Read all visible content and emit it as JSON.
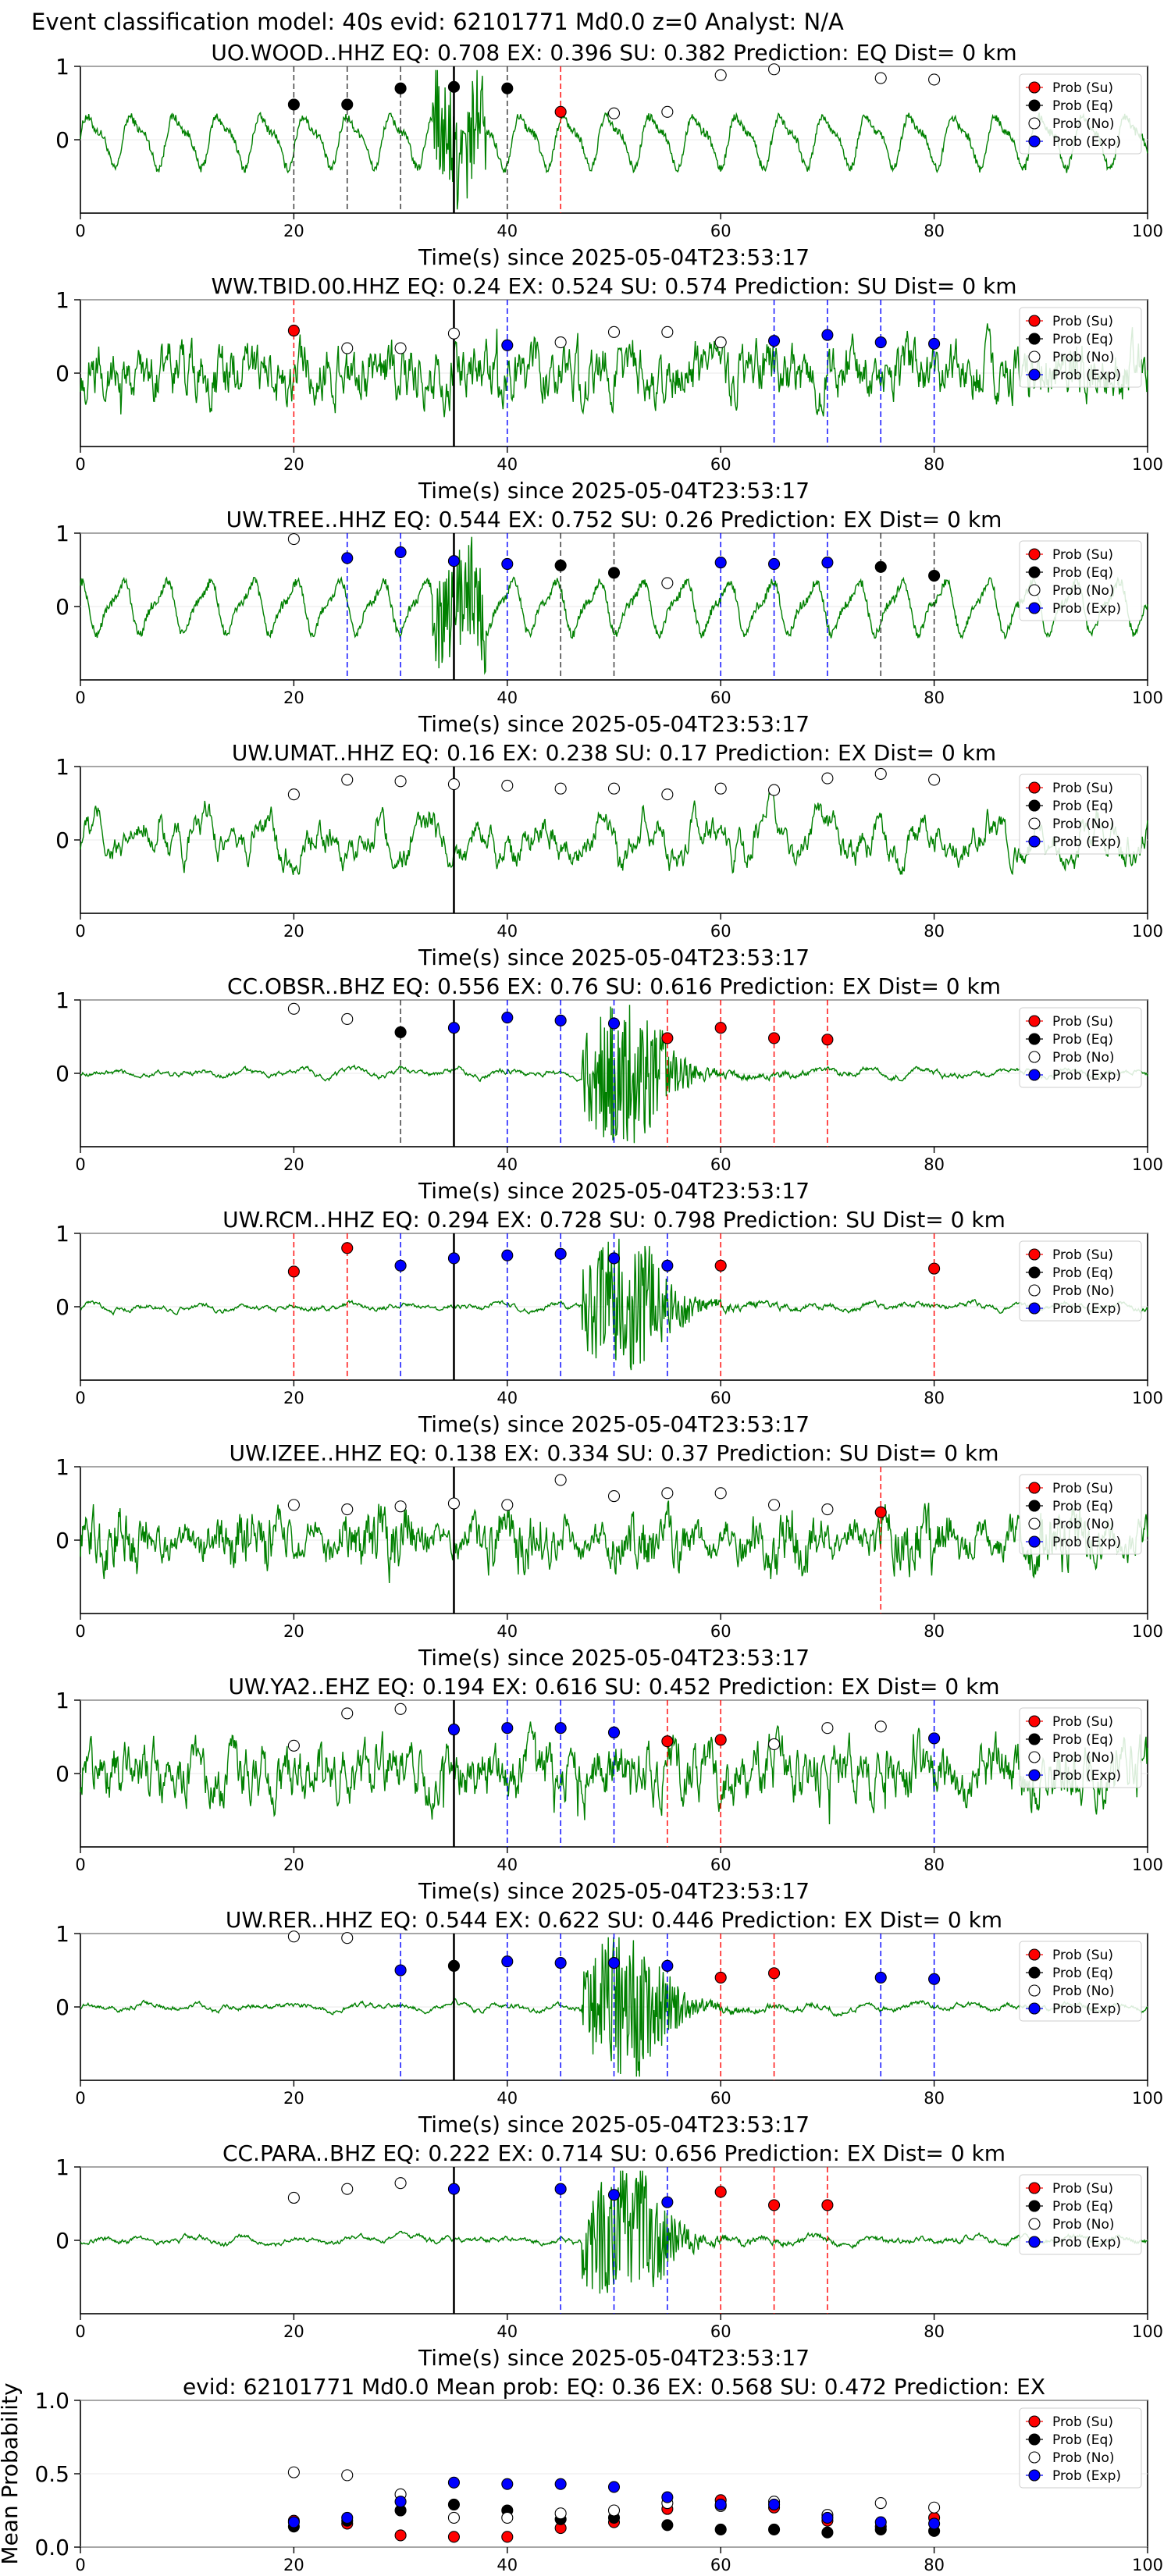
{
  "figure_title": "Event classification model: 40s evid: 62101771 Md0.0 z=0 Analyst: N/A",
  "legend_labels": [
    "Prob (Su)",
    "Prob (Eq)",
    "Prob (No)",
    "Prob (Exp)"
  ],
  "colors": {
    "su": "#ff0000",
    "eq": "#000000",
    "no": "#ffffff",
    "exp": "#0000ff",
    "waveform": "#008000",
    "axis": "#000000"
  },
  "chart_data": [
    {
      "type": "line",
      "station": "UO.WOOD..HHZ",
      "title": "UO.WOOD..HHZ   EQ: 0.708  EX: 0.396  SU: 0.382   Prediction: EQ    Dist= 0 km",
      "xlabel": "Time(s) since 2025-05-04T23:53:17",
      "ylabel": "",
      "xlim": [
        0,
        100
      ],
      "ylim": [
        -1,
        1
      ],
      "xticks": [
        0,
        20,
        40,
        60,
        80,
        100
      ],
      "yticks": [
        0,
        1
      ],
      "origin_line": 35,
      "waveform": "low-frequency",
      "points": [
        {
          "x": 20,
          "y": 0.48,
          "cls": "eq"
        },
        {
          "x": 25,
          "y": 0.48,
          "cls": "eq"
        },
        {
          "x": 30,
          "y": 0.7,
          "cls": "eq"
        },
        {
          "x": 35,
          "y": 0.72,
          "cls": "eq"
        },
        {
          "x": 40,
          "y": 0.7,
          "cls": "eq"
        },
        {
          "x": 45,
          "y": 0.38,
          "cls": "su"
        },
        {
          "x": 50,
          "y": 0.36,
          "cls": "no"
        },
        {
          "x": 55,
          "y": 0.38,
          "cls": "no"
        },
        {
          "x": 60,
          "y": 0.88,
          "cls": "no"
        },
        {
          "x": 65,
          "y": 0.96,
          "cls": "no"
        },
        {
          "x": 75,
          "y": 0.84,
          "cls": "no"
        },
        {
          "x": 80,
          "y": 0.82,
          "cls": "no"
        }
      ]
    },
    {
      "type": "line",
      "station": "WW.TBID.00.HHZ",
      "title": "WW.TBID.00.HHZ   EQ: 0.24  EX: 0.524  SU: 0.574   Prediction: SU    Dist= 0 km",
      "xlabel": "Time(s) since 2025-05-04T23:53:17",
      "ylabel": "",
      "xlim": [
        0,
        100
      ],
      "ylim": [
        -1,
        1
      ],
      "xticks": [
        0,
        20,
        40,
        60,
        80,
        100
      ],
      "yticks": [
        0,
        1
      ],
      "origin_line": 35,
      "waveform": "noisy",
      "points": [
        {
          "x": 20,
          "y": 0.58,
          "cls": "su"
        },
        {
          "x": 25,
          "y": 0.34,
          "cls": "no"
        },
        {
          "x": 30,
          "y": 0.34,
          "cls": "no"
        },
        {
          "x": 35,
          "y": 0.54,
          "cls": "no"
        },
        {
          "x": 40,
          "y": 0.38,
          "cls": "exp"
        },
        {
          "x": 45,
          "y": 0.42,
          "cls": "no"
        },
        {
          "x": 50,
          "y": 0.56,
          "cls": "no"
        },
        {
          "x": 55,
          "y": 0.56,
          "cls": "no"
        },
        {
          "x": 60,
          "y": 0.42,
          "cls": "no"
        },
        {
          "x": 65,
          "y": 0.44,
          "cls": "exp"
        },
        {
          "x": 70,
          "y": 0.52,
          "cls": "exp"
        },
        {
          "x": 75,
          "y": 0.42,
          "cls": "exp"
        },
        {
          "x": 80,
          "y": 0.4,
          "cls": "exp"
        }
      ]
    },
    {
      "type": "line",
      "station": "UW.TREE..HHZ",
      "title": "UW.TREE..HHZ   EQ: 0.544  EX: 0.752  SU: 0.26   Prediction: EX    Dist= 0 km",
      "xlabel": "Time(s) since 2025-05-04T23:53:17",
      "ylabel": "",
      "xlim": [
        0,
        100
      ],
      "ylim": [
        -1,
        1
      ],
      "xticks": [
        0,
        20,
        40,
        60,
        80,
        100
      ],
      "yticks": [
        0,
        1
      ],
      "origin_line": 35,
      "waveform": "low-frequency",
      "points": [
        {
          "x": 20,
          "y": 0.92,
          "cls": "no"
        },
        {
          "x": 25,
          "y": 0.66,
          "cls": "exp"
        },
        {
          "x": 30,
          "y": 0.74,
          "cls": "exp"
        },
        {
          "x": 35,
          "y": 0.62,
          "cls": "exp"
        },
        {
          "x": 40,
          "y": 0.58,
          "cls": "exp"
        },
        {
          "x": 45,
          "y": 0.56,
          "cls": "eq"
        },
        {
          "x": 50,
          "y": 0.46,
          "cls": "eq"
        },
        {
          "x": 55,
          "y": 0.32,
          "cls": "no"
        },
        {
          "x": 60,
          "y": 0.6,
          "cls": "exp"
        },
        {
          "x": 65,
          "y": 0.58,
          "cls": "exp"
        },
        {
          "x": 70,
          "y": 0.6,
          "cls": "exp"
        },
        {
          "x": 75,
          "y": 0.54,
          "cls": "eq"
        },
        {
          "x": 80,
          "y": 0.42,
          "cls": "eq"
        }
      ]
    },
    {
      "type": "line",
      "station": "UW.UMAT..HHZ",
      "title": "UW.UMAT..HHZ   EQ: 0.16  EX: 0.238  SU: 0.17   Prediction: EX    Dist= 0 km",
      "xlabel": "Time(s) since 2025-05-04T23:53:17",
      "ylabel": "",
      "xlim": [
        0,
        100
      ],
      "ylim": [
        -1,
        1
      ],
      "xticks": [
        0,
        20,
        40,
        60,
        80,
        100
      ],
      "yticks": [
        0,
        1
      ],
      "origin_line": 35,
      "waveform": "medium",
      "points": [
        {
          "x": 20,
          "y": 0.62,
          "cls": "no"
        },
        {
          "x": 25,
          "y": 0.82,
          "cls": "no"
        },
        {
          "x": 30,
          "y": 0.8,
          "cls": "no"
        },
        {
          "x": 35,
          "y": 0.76,
          "cls": "no"
        },
        {
          "x": 40,
          "y": 0.74,
          "cls": "no"
        },
        {
          "x": 45,
          "y": 0.7,
          "cls": "no"
        },
        {
          "x": 50,
          "y": 0.7,
          "cls": "no"
        },
        {
          "x": 55,
          "y": 0.62,
          "cls": "no"
        },
        {
          "x": 60,
          "y": 0.7,
          "cls": "no"
        },
        {
          "x": 65,
          "y": 0.68,
          "cls": "no"
        },
        {
          "x": 70,
          "y": 0.84,
          "cls": "no"
        },
        {
          "x": 75,
          "y": 0.9,
          "cls": "no"
        },
        {
          "x": 80,
          "y": 0.82,
          "cls": "no"
        }
      ]
    },
    {
      "type": "line",
      "station": "CC.OBSR..BHZ",
      "title": "CC.OBSR..BHZ   EQ: 0.556  EX: 0.76  SU: 0.616   Prediction: EX    Dist= 0 km",
      "xlabel": "Time(s) since 2025-05-04T23:53:17",
      "ylabel": "",
      "xlim": [
        0,
        100
      ],
      "ylim": [
        -1,
        1
      ],
      "xticks": [
        0,
        20,
        40,
        60,
        80,
        100
      ],
      "yticks": [
        0,
        1
      ],
      "origin_line": 35,
      "waveform": "burst",
      "points": [
        {
          "x": 20,
          "y": 0.88,
          "cls": "no"
        },
        {
          "x": 25,
          "y": 0.74,
          "cls": "no"
        },
        {
          "x": 30,
          "y": 0.56,
          "cls": "eq"
        },
        {
          "x": 35,
          "y": 0.62,
          "cls": "exp"
        },
        {
          "x": 40,
          "y": 0.76,
          "cls": "exp"
        },
        {
          "x": 45,
          "y": 0.72,
          "cls": "exp"
        },
        {
          "x": 50,
          "y": 0.68,
          "cls": "exp"
        },
        {
          "x": 55,
          "y": 0.48,
          "cls": "su"
        },
        {
          "x": 60,
          "y": 0.62,
          "cls": "su"
        },
        {
          "x": 65,
          "y": 0.48,
          "cls": "su"
        },
        {
          "x": 70,
          "y": 0.46,
          "cls": "su"
        }
      ]
    },
    {
      "type": "line",
      "station": "UW.RCM..HHZ",
      "title": "UW.RCM..HHZ   EQ: 0.294  EX: 0.728  SU: 0.798   Prediction: SU    Dist= 0 km",
      "xlabel": "Time(s) since 2025-05-04T23:53:17",
      "ylabel": "",
      "xlim": [
        0,
        100
      ],
      "ylim": [
        -1,
        1
      ],
      "xticks": [
        0,
        20,
        40,
        60,
        80,
        100
      ],
      "yticks": [
        0,
        1
      ],
      "origin_line": 35,
      "waveform": "burst",
      "points": [
        {
          "x": 20,
          "y": 0.48,
          "cls": "su"
        },
        {
          "x": 25,
          "y": 0.8,
          "cls": "su"
        },
        {
          "x": 30,
          "y": 0.56,
          "cls": "exp"
        },
        {
          "x": 35,
          "y": 0.66,
          "cls": "exp"
        },
        {
          "x": 40,
          "y": 0.7,
          "cls": "exp"
        },
        {
          "x": 45,
          "y": 0.72,
          "cls": "exp"
        },
        {
          "x": 50,
          "y": 0.66,
          "cls": "exp"
        },
        {
          "x": 55,
          "y": 0.56,
          "cls": "exp"
        },
        {
          "x": 60,
          "y": 0.56,
          "cls": "su"
        },
        {
          "x": 80,
          "y": 0.52,
          "cls": "su"
        }
      ]
    },
    {
      "type": "line",
      "station": "UW.IZEE..HHZ",
      "title": "UW.IZEE..HHZ   EQ: 0.138  EX: 0.334  SU: 0.37   Prediction: SU    Dist= 0 km",
      "xlabel": "Time(s) since 2025-05-04T23:53:17",
      "ylabel": "",
      "xlim": [
        0,
        100
      ],
      "ylim": [
        -1,
        1
      ],
      "xticks": [
        0,
        20,
        40,
        60,
        80,
        100
      ],
      "yticks": [
        0,
        1
      ],
      "origin_line": 35,
      "waveform": "dense",
      "points": [
        {
          "x": 20,
          "y": 0.48,
          "cls": "no"
        },
        {
          "x": 25,
          "y": 0.42,
          "cls": "no"
        },
        {
          "x": 30,
          "y": 0.46,
          "cls": "no"
        },
        {
          "x": 35,
          "y": 0.5,
          "cls": "no"
        },
        {
          "x": 40,
          "y": 0.48,
          "cls": "no"
        },
        {
          "x": 45,
          "y": 0.82,
          "cls": "no"
        },
        {
          "x": 50,
          "y": 0.6,
          "cls": "no"
        },
        {
          "x": 55,
          "y": 0.64,
          "cls": "no"
        },
        {
          "x": 60,
          "y": 0.64,
          "cls": "no"
        },
        {
          "x": 65,
          "y": 0.48,
          "cls": "no"
        },
        {
          "x": 70,
          "y": 0.42,
          "cls": "no"
        },
        {
          "x": 75,
          "y": 0.38,
          "cls": "su"
        }
      ]
    },
    {
      "type": "line",
      "station": "UW.YA2..EHZ",
      "title": "UW.YA2..EHZ   EQ: 0.194  EX: 0.616  SU: 0.452   Prediction: EX    Dist= 0 km",
      "xlabel": "Time(s) since 2025-05-04T23:53:17",
      "ylabel": "",
      "xlim": [
        0,
        100
      ],
      "ylim": [
        -1,
        1
      ],
      "xticks": [
        0,
        20,
        40,
        60,
        80,
        100
      ],
      "yticks": [
        0,
        1
      ],
      "origin_line": 35,
      "waveform": "noisy",
      "points": [
        {
          "x": 20,
          "y": 0.38,
          "cls": "no"
        },
        {
          "x": 25,
          "y": 0.82,
          "cls": "no"
        },
        {
          "x": 30,
          "y": 0.88,
          "cls": "no"
        },
        {
          "x": 35,
          "y": 0.6,
          "cls": "exp"
        },
        {
          "x": 40,
          "y": 0.62,
          "cls": "exp"
        },
        {
          "x": 45,
          "y": 0.62,
          "cls": "exp"
        },
        {
          "x": 50,
          "y": 0.56,
          "cls": "exp"
        },
        {
          "x": 55,
          "y": 0.44,
          "cls": "su"
        },
        {
          "x": 60,
          "y": 0.46,
          "cls": "su"
        },
        {
          "x": 65,
          "y": 0.4,
          "cls": "no"
        },
        {
          "x": 70,
          "y": 0.62,
          "cls": "no"
        },
        {
          "x": 75,
          "y": 0.64,
          "cls": "no"
        },
        {
          "x": 80,
          "y": 0.48,
          "cls": "exp"
        }
      ]
    },
    {
      "type": "line",
      "station": "UW.RER..HHZ",
      "title": "UW.RER..HHZ   EQ: 0.544  EX: 0.622  SU: 0.446   Prediction: EX    Dist= 0 km",
      "xlabel": "Time(s) since 2025-05-04T23:53:17",
      "ylabel": "",
      "xlim": [
        0,
        100
      ],
      "ylim": [
        -1,
        1
      ],
      "xticks": [
        0,
        20,
        40,
        60,
        80,
        100
      ],
      "yticks": [
        0,
        1
      ],
      "origin_line": 35,
      "waveform": "burst",
      "points": [
        {
          "x": 20,
          "y": 0.96,
          "cls": "no"
        },
        {
          "x": 25,
          "y": 0.94,
          "cls": "no"
        },
        {
          "x": 30,
          "y": 0.5,
          "cls": "exp"
        },
        {
          "x": 35,
          "y": 0.56,
          "cls": "eq"
        },
        {
          "x": 40,
          "y": 0.62,
          "cls": "exp"
        },
        {
          "x": 45,
          "y": 0.6,
          "cls": "exp"
        },
        {
          "x": 50,
          "y": 0.6,
          "cls": "exp"
        },
        {
          "x": 55,
          "y": 0.56,
          "cls": "exp"
        },
        {
          "x": 60,
          "y": 0.4,
          "cls": "su"
        },
        {
          "x": 65,
          "y": 0.46,
          "cls": "su"
        },
        {
          "x": 75,
          "y": 0.4,
          "cls": "exp"
        },
        {
          "x": 80,
          "y": 0.38,
          "cls": "exp"
        }
      ]
    },
    {
      "type": "line",
      "station": "CC.PARA..BHZ",
      "title": "CC.PARA..BHZ   EQ: 0.222  EX: 0.714  SU: 0.656   Prediction: EX    Dist= 0 km",
      "xlabel": "Time(s) since 2025-05-04T23:53:17",
      "ylabel": "",
      "xlim": [
        0,
        100
      ],
      "ylim": [
        -1,
        1
      ],
      "xticks": [
        0,
        20,
        40,
        60,
        80,
        100
      ],
      "yticks": [
        0,
        1
      ],
      "origin_line": 35,
      "waveform": "burst",
      "points": [
        {
          "x": 20,
          "y": 0.58,
          "cls": "no"
        },
        {
          "x": 25,
          "y": 0.7,
          "cls": "no"
        },
        {
          "x": 30,
          "y": 0.78,
          "cls": "no"
        },
        {
          "x": 35,
          "y": 0.7,
          "cls": "exp"
        },
        {
          "x": 45,
          "y": 0.7,
          "cls": "exp"
        },
        {
          "x": 50,
          "y": 0.62,
          "cls": "exp"
        },
        {
          "x": 55,
          "y": 0.52,
          "cls": "exp"
        },
        {
          "x": 60,
          "y": 0.66,
          "cls": "su"
        },
        {
          "x": 65,
          "y": 0.48,
          "cls": "su"
        },
        {
          "x": 70,
          "y": 0.48,
          "cls": "su"
        }
      ]
    },
    {
      "type": "scatter",
      "station": "mean",
      "title": "evid: 62101771  Md0.0   Mean prob:   EQ: 0.36  EX: 0.568  SU: 0.472   Prediction: EX",
      "xlabel": "",
      "ylabel": "Mean Probability",
      "xlim": [
        0,
        100
      ],
      "ylim": [
        0,
        1
      ],
      "xticks": [
        0,
        20,
        40,
        60,
        80,
        100
      ],
      "yticks": [
        0.0,
        0.5,
        1.0
      ],
      "ytick_labels": [
        "0.0",
        "0.5",
        "1.0"
      ],
      "x": [
        20,
        25,
        30,
        35,
        40,
        45,
        50,
        55,
        60,
        65,
        70,
        75,
        80
      ],
      "series": [
        {
          "name": "Prob (Su)",
          "cls": "su",
          "values": [
            0.18,
            0.16,
            0.08,
            0.07,
            0.07,
            0.13,
            0.17,
            0.26,
            0.32,
            0.27,
            0.18,
            0.14,
            0.2
          ]
        },
        {
          "name": "Prob (Eq)",
          "cls": "eq",
          "values": [
            0.14,
            0.18,
            0.25,
            0.29,
            0.25,
            0.19,
            0.2,
            0.15,
            0.12,
            0.12,
            0.1,
            0.12,
            0.11
          ]
        },
        {
          "name": "Prob (No)",
          "cls": "no",
          "values": [
            0.51,
            0.49,
            0.36,
            0.2,
            0.2,
            0.23,
            0.25,
            0.3,
            0.28,
            0.31,
            0.22,
            0.3,
            0.27
          ]
        },
        {
          "name": "Prob (Exp)",
          "cls": "exp",
          "values": [
            0.17,
            0.2,
            0.31,
            0.44,
            0.43,
            0.43,
            0.41,
            0.34,
            0.29,
            0.29,
            0.2,
            0.17,
            0.16
          ]
        }
      ]
    }
  ]
}
